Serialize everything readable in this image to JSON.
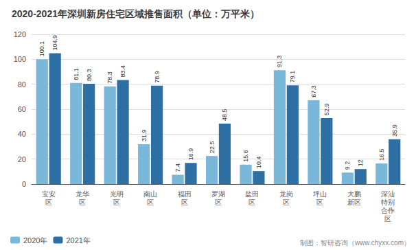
{
  "chart_data": {
    "type": "bar",
    "title": "2020-2021年深圳新房住宅区域推售面积（单位：万平米）",
    "categories": [
      "宝安\n区",
      "龙华\n区",
      "光明\n区",
      "南山\n区",
      "福田\n区",
      "罗湖\n区",
      "盐田\n区",
      "龙岗\n区",
      "坪山\n区",
      "大鹏\n新区",
      "深汕\n特别\n合作\n区"
    ],
    "series": [
      {
        "name": "2020年",
        "color": "#7ab8d9",
        "values": [
          100.1,
          81.1,
          78.3,
          31.9,
          7.4,
          22.5,
          15.6,
          91.3,
          67.3,
          9.2,
          16.5
        ]
      },
      {
        "name": "2021年",
        "color": "#2e6fa3",
        "values": [
          104.9,
          80.3,
          83.4,
          78.9,
          16.9,
          48.5,
          10.4,
          79.1,
          52.9,
          12,
          35.9
        ]
      }
    ],
    "ylim": [
      0,
      120
    ],
    "yticks": [
      0,
      20,
      40,
      60,
      80,
      100,
      120
    ],
    "grid": true,
    "legend": "bottom",
    "data_labels": true,
    "annotations": [
      "制图：智研咨询（www.chyxx.com）"
    ]
  }
}
